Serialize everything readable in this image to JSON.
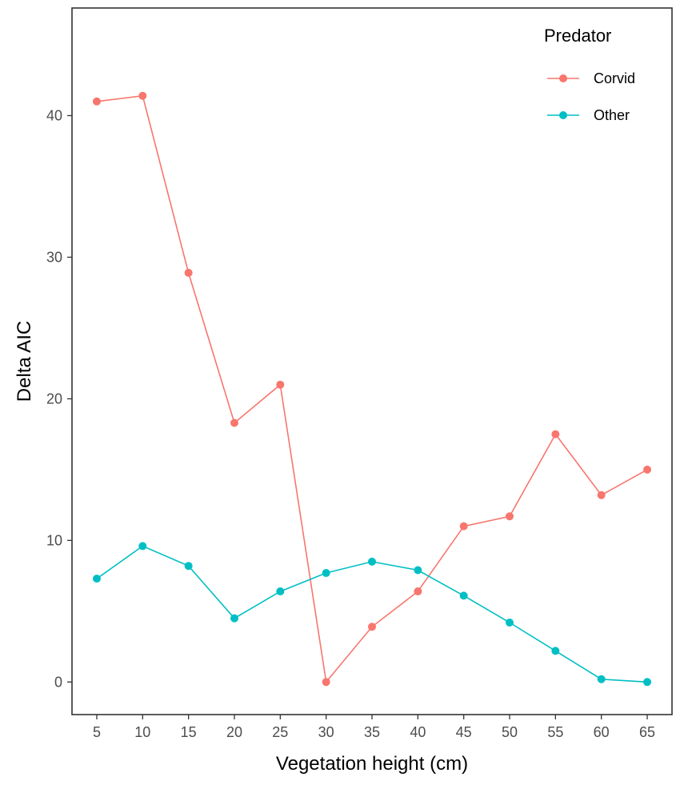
{
  "chart_data": {
    "type": "line",
    "xlabel": "Vegetation height (cm)",
    "ylabel": "Delta AIC",
    "x": [
      5,
      10,
      15,
      20,
      25,
      30,
      35,
      40,
      45,
      50,
      55,
      60,
      65
    ],
    "xlim": [
      2.3,
      67.7
    ],
    "ylim": [
      -2.3,
      47.6
    ],
    "xticks": [
      5,
      10,
      15,
      20,
      25,
      30,
      35,
      40,
      45,
      50,
      55,
      60,
      65
    ],
    "yticks": [
      0,
      10,
      20,
      30,
      40
    ],
    "grid": false,
    "legend": {
      "title": "Predator",
      "placement": "top-right, inside plot"
    },
    "series": [
      {
        "name": "Corvid",
        "color": "#F8766D",
        "values": [
          41.0,
          41.4,
          28.9,
          18.3,
          21.0,
          0.0,
          3.9,
          6.4,
          11.0,
          11.7,
          17.5,
          13.2,
          15.0
        ]
      },
      {
        "name": "Other",
        "color": "#00BFC4",
        "values": [
          7.3,
          9.6,
          8.2,
          4.5,
          6.4,
          7.7,
          8.5,
          7.9,
          6.1,
          4.2,
          2.2,
          0.2,
          0.0
        ]
      }
    ]
  }
}
